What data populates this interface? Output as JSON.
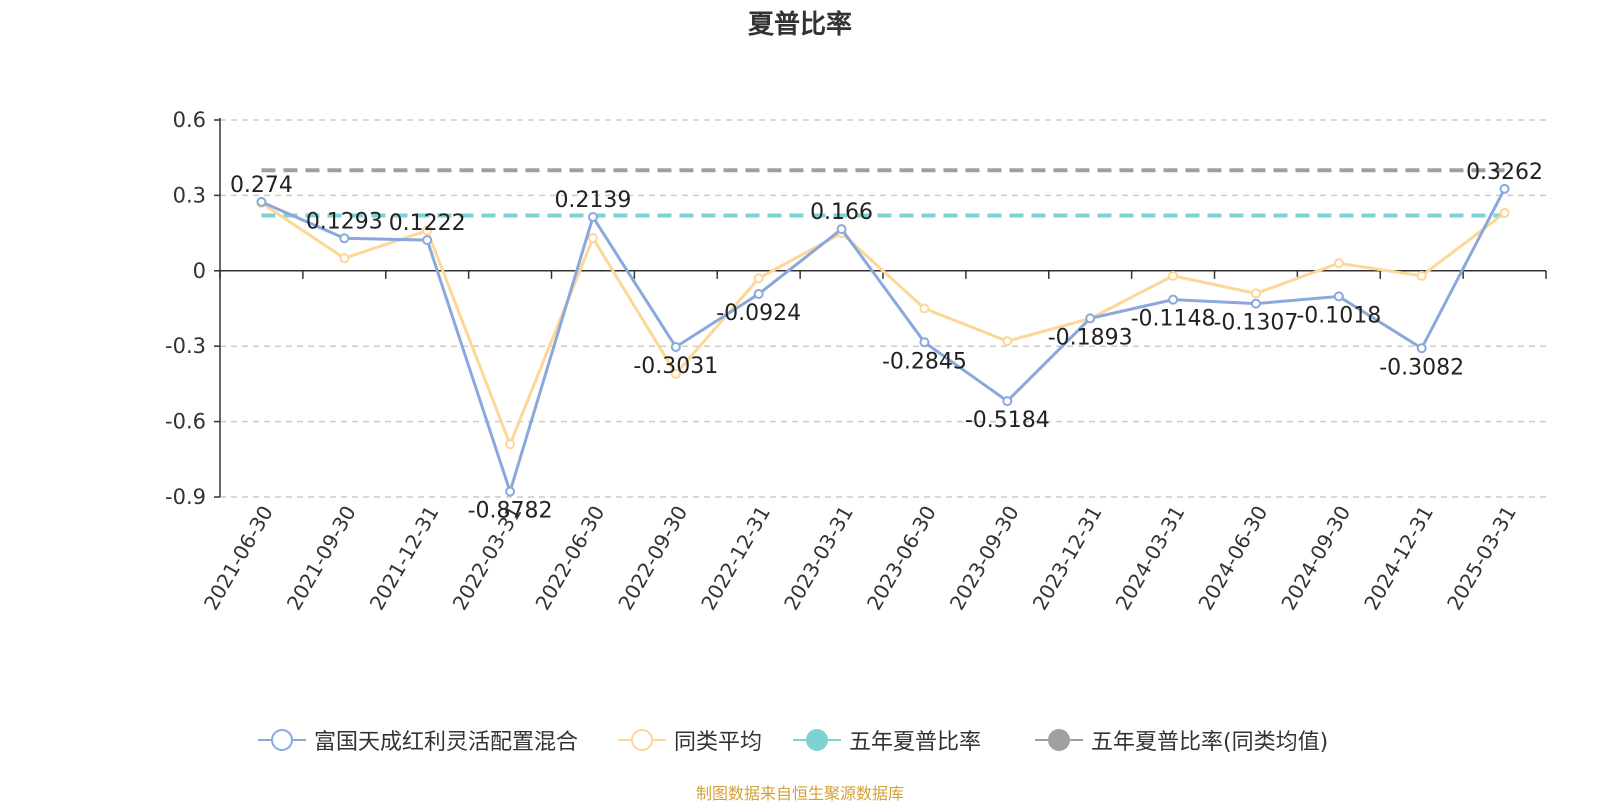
{
  "chart_data": {
    "type": "line",
    "title": "夏普比率",
    "categories": [
      "2021-06-30",
      "2021-09-30",
      "2021-12-31",
      "2022-03-31",
      "2022-06-30",
      "2022-09-30",
      "2022-12-31",
      "2023-03-31",
      "2023-06-30",
      "2023-09-30",
      "2023-12-31",
      "2024-03-31",
      "2024-06-30",
      "2024-09-30",
      "2024-12-31",
      "2025-03-31"
    ],
    "ylim": [
      -0.9,
      0.6
    ],
    "yticks": [
      "0.6",
      "0.3",
      "0",
      "-0.3",
      "-0.6",
      "-0.9"
    ],
    "ytick_values": [
      0.6,
      0.3,
      0,
      -0.3,
      -0.6,
      -0.9
    ],
    "grid": true,
    "legend_position": "bottom",
    "series": [
      {
        "name": "富国天成红利灵活配置混合",
        "color": "#8aa8dc",
        "values": [
          0.274,
          0.1293,
          0.1222,
          -0.8782,
          0.2139,
          -0.3031,
          -0.0924,
          0.166,
          -0.2845,
          -0.5184,
          -0.1893,
          -0.1148,
          -0.1307,
          -0.1018,
          -0.3082,
          0.3262
        ],
        "labels": [
          "0.274",
          "0.1293",
          "0.1222",
          "-0.8782",
          "0.2139",
          "-0.3031",
          "-0.0924",
          "0.166",
          "-0.2845",
          "-0.5184",
          "-0.1893",
          "-0.1148",
          "-0.1307",
          "-0.1018",
          "-0.3082",
          "0.3262"
        ]
      },
      {
        "name": "同类平均",
        "color": "#fcd797",
        "values": [
          0.27,
          0.05,
          0.16,
          -0.69,
          0.13,
          -0.41,
          -0.03,
          0.15,
          -0.15,
          -0.28,
          -0.19,
          -0.02,
          -0.09,
          0.03,
          -0.02,
          0.23
        ]
      },
      {
        "name": "五年夏普比率",
        "color": "#7dd3d1",
        "values": [
          0.22,
          0.22,
          0.22,
          0.22,
          0.22,
          0.22,
          0.22,
          0.22,
          0.22,
          0.22,
          0.22,
          0.22,
          0.22,
          0.22,
          0.22,
          0.22
        ]
      },
      {
        "name": "五年夏普比率(同类均值)",
        "color": "#a0a0a0",
        "values": [
          0.4,
          0.4,
          0.4,
          0.4,
          0.4,
          0.4,
          0.4,
          0.4,
          0.4,
          0.4,
          0.4,
          0.4,
          0.4,
          0.4,
          0.4,
          0.4
        ]
      }
    ]
  },
  "source_text": "制图数据来自恒生聚源数据库"
}
